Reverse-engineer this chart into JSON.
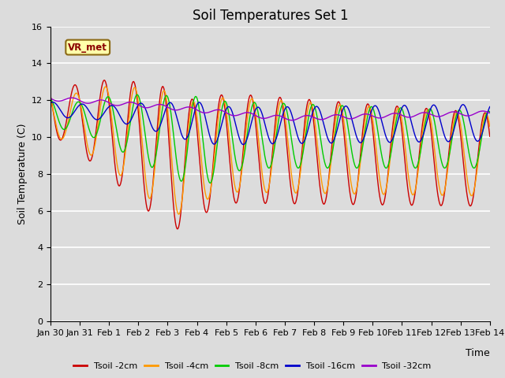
{
  "title": "Soil Temperatures Set 1",
  "xlabel": "Time",
  "ylabel": "Soil Temperature (C)",
  "ylim": [
    0,
    16
  ],
  "yticks": [
    0,
    2,
    4,
    6,
    8,
    10,
    12,
    14,
    16
  ],
  "date_labels": [
    "Jan 30",
    "Jan 31",
    "Feb 1",
    "Feb 2",
    "Feb 3",
    "Feb 4",
    "Feb 5",
    "Feb 6",
    "Feb 7",
    "Feb 8",
    "Feb 9",
    "Feb 10",
    "Feb 11",
    "Feb 12",
    "Feb 13",
    "Feb 14"
  ],
  "series_colors": [
    "#cc0000",
    "#ff9900",
    "#00cc00",
    "#0000cc",
    "#9900cc"
  ],
  "series_labels": [
    "Tsoil -2cm",
    "Tsoil -4cm",
    "Tsoil -8cm",
    "Tsoil -16cm",
    "Tsoil -32cm"
  ],
  "annotation_text": "VR_met",
  "background_color": "#dcdcdc",
  "title_fontsize": 12,
  "axis_label_fontsize": 9,
  "tick_fontsize": 8
}
